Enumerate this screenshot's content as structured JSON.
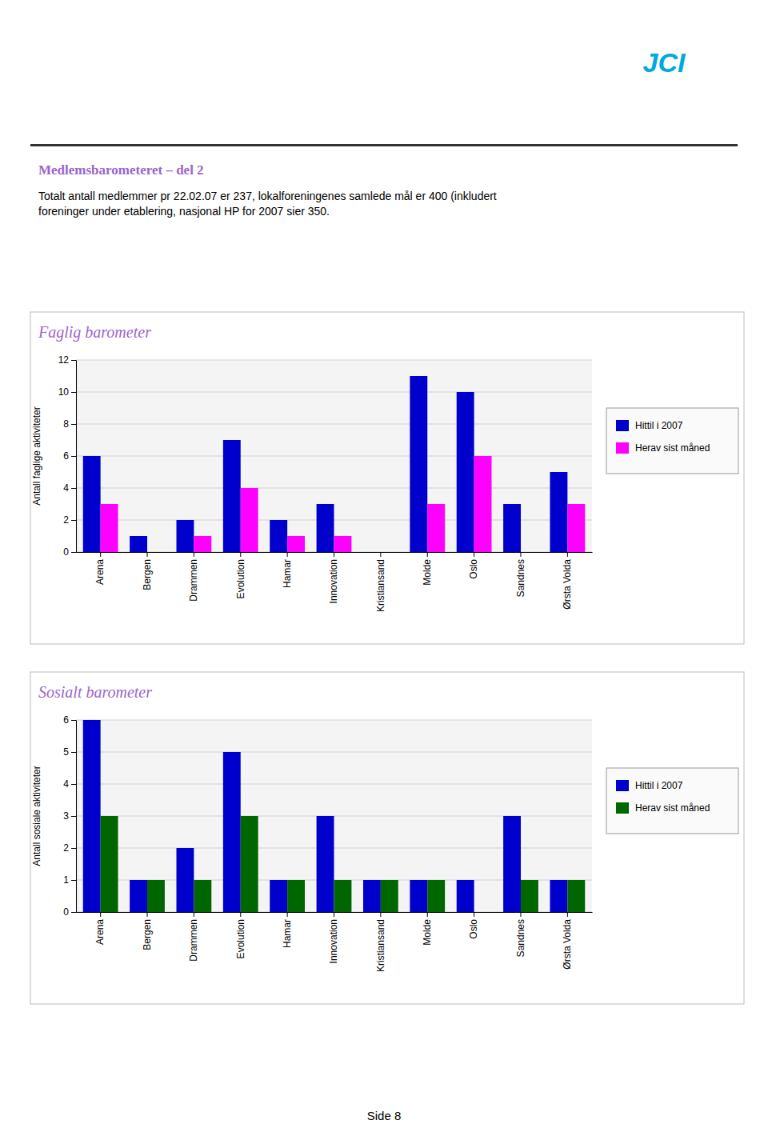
{
  "title": "Medlemsbarometeret – del 2",
  "subtitle": "Totalt antall medlemmer pr 22.02.07 er 237, lokalforeningenes samlede mål er 400 (inkludert\nforeninger under etablering, nasjonal HP for 2007 sier 350.",
  "annotations": [
    "JCI",
    "Side 8"
  ],
  "chart_data": [
    {
      "type": "bar",
      "title": "Faglig barometer",
      "categories": [
        "Arena",
        "Bergen",
        "Drammen",
        "Evolution",
        "Hamar",
        "Innovation",
        "Kristiansand",
        "Molde",
        "Oslo",
        "Sandnes",
        "Ørsta Volda"
      ],
      "series": [
        {
          "name": "Hittil i 2007",
          "color": "#0000CC",
          "values": [
            6,
            1,
            2,
            7,
            2,
            3,
            0,
            11,
            10,
            3,
            5
          ]
        },
        {
          "name": "Herav sist måned",
          "color": "#FF00FF",
          "values": [
            3,
            0,
            1,
            4,
            1,
            1,
            0,
            3,
            6,
            0,
            3
          ]
        }
      ],
      "ylabel": "Antall faglige aktiviteter",
      "ylim": [
        0,
        12
      ],
      "yticks": [
        0,
        2,
        4,
        6,
        8,
        10,
        12
      ],
      "grid": true,
      "legend": "right"
    },
    {
      "type": "bar",
      "title": "Sosialt barometer",
      "categories": [
        "Arena",
        "Bergen",
        "Drammen",
        "Evolution",
        "Hamar",
        "Innovation",
        "Kristiansand",
        "Molde",
        "Oslo",
        "Sandnes",
        "Ørsta Volda"
      ],
      "series": [
        {
          "name": "Hittil i 2007",
          "color": "#0000CC",
          "values": [
            6,
            1,
            2,
            5,
            1,
            3,
            1,
            1,
            1,
            3,
            1
          ]
        },
        {
          "name": "Herav sist måned",
          "color": "#006600",
          "values": [
            3,
            1,
            1,
            3,
            1,
            1,
            1,
            1,
            0,
            1,
            1
          ]
        }
      ],
      "ylabel": "Antall sosiale aktiviteter",
      "ylim": [
        0,
        6
      ],
      "yticks": [
        0,
        1,
        2,
        3,
        4,
        5,
        6
      ],
      "grid": true,
      "legend": "right"
    }
  ]
}
